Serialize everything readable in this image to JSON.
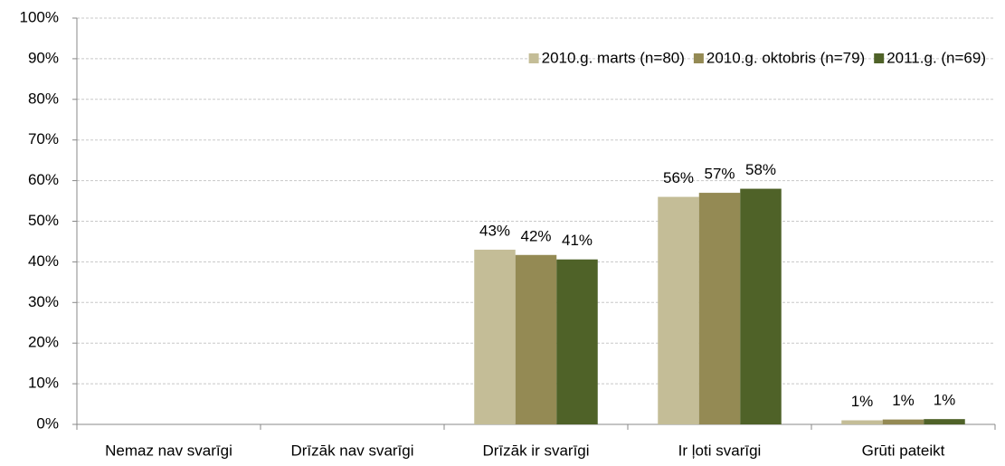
{
  "chart_data": {
    "type": "bar",
    "categories": [
      "Nemaz nav svarīgi",
      "Drīzāk nav svarīgi",
      "Drīzāk ir svarīgi",
      "Ir ļoti svarīgi",
      "Grūti pateikt"
    ],
    "series": [
      {
        "name": "2010.g. marts (n=80)",
        "color": "#c4bd97",
        "values": [
          null,
          null,
          43,
          56,
          1
        ],
        "value_labels": [
          null,
          null,
          "43%",
          "56%",
          "1%"
        ]
      },
      {
        "name": "2010.g. oktobris (n=79)",
        "color": "#948a54",
        "values": [
          null,
          null,
          41.7,
          57,
          1.2
        ],
        "value_labels": [
          null,
          null,
          "42%",
          "57%",
          "1%"
        ]
      },
      {
        "name": "2011.g. (n=69)",
        "color": "#4f6228",
        "values": [
          null,
          null,
          40.6,
          58,
          1.3
        ],
        "value_labels": [
          null,
          null,
          "41%",
          "58%",
          "1%"
        ]
      }
    ],
    "ylim": [
      0,
      100
    ],
    "yticks": [
      {
        "value": 0,
        "label": "0%"
      },
      {
        "value": 10,
        "label": "10%"
      },
      {
        "value": 20,
        "label": "20%"
      },
      {
        "value": 30,
        "label": "30%"
      },
      {
        "value": 40,
        "label": "40%"
      },
      {
        "value": 50,
        "label": "50%"
      },
      {
        "value": 60,
        "label": "60%"
      },
      {
        "value": 70,
        "label": "70%"
      },
      {
        "value": 80,
        "label": "80%"
      },
      {
        "value": 90,
        "label": "90%"
      },
      {
        "value": 100,
        "label": "100%"
      }
    ],
    "grid": true,
    "legend": "top-right"
  }
}
